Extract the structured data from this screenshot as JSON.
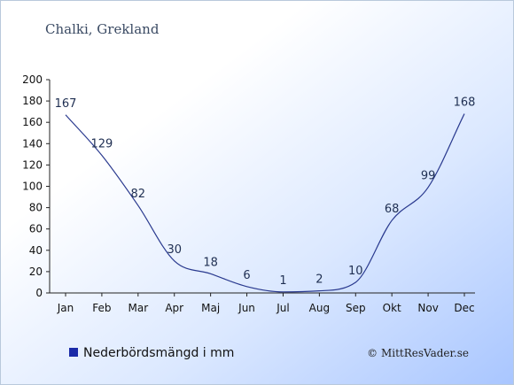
{
  "chart_data": {
    "type": "line",
    "title": "Chalki, Grekland",
    "categories": [
      "Jan",
      "Feb",
      "Mar",
      "Apr",
      "Maj",
      "Jun",
      "Jul",
      "Aug",
      "Sep",
      "Okt",
      "Nov",
      "Dec"
    ],
    "series": [
      {
        "name": "Nederbördsmängd i mm",
        "values": [
          167,
          129,
          82,
          30,
          18,
          6,
          1,
          2,
          10,
          68,
          99,
          168
        ],
        "color": "#2a3a8f"
      }
    ],
    "ylim": [
      0,
      200
    ],
    "yticks": [
      0,
      20,
      40,
      60,
      80,
      100,
      120,
      140,
      160,
      180,
      200
    ],
    "grid": false,
    "legend": "bottom-left"
  },
  "legend": {
    "swatch_color": "#1a2aa8"
  },
  "footer": {
    "copyright": "© MittResVader.se"
  }
}
